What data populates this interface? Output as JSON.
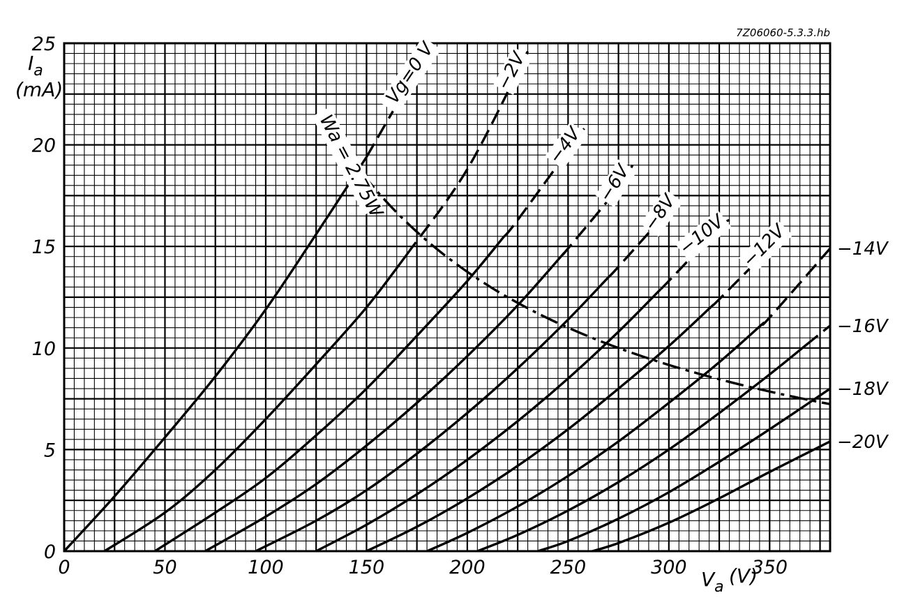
{
  "figure_code": "7Z06060-5.3.3.hb",
  "chart_data": {
    "type": "line",
    "ylabel": "I",
    "ylabel_sub": "a",
    "ylabel_unit": "(mA)",
    "xlabel": "V",
    "xlabel_sub": "a",
    "xlabel_unit": "(V)",
    "xlim": [
      0,
      380
    ],
    "ylim": [
      0,
      25
    ],
    "x_ticks": [
      0,
      50,
      100,
      150,
      200,
      250,
      300,
      350
    ],
    "y_ticks": [
      0,
      5,
      10,
      15,
      20,
      25
    ],
    "x_tick_labels": [
      "0",
      "50",
      "100",
      "150",
      "200",
      "250",
      "300",
      "350"
    ],
    "y_tick_labels": [
      "0",
      "5",
      "10",
      "15",
      "20",
      "25"
    ],
    "grid": true,
    "grid_minor_x": 5,
    "grid_minor_y": 0.5,
    "series": [
      {
        "name": "Vg=0 V",
        "label_side": "curve",
        "points": [
          [
            0,
            0
          ],
          [
            25,
            2.7
          ],
          [
            50,
            5.6
          ],
          [
            75,
            8.6
          ],
          [
            100,
            11.9
          ],
          [
            125,
            15.6
          ],
          [
            150,
            19.4
          ],
          [
            170,
            22.8
          ],
          [
            185,
            25.0
          ]
        ],
        "dashed_from": 150
      },
      {
        "name": "−2V",
        "label_side": "curve",
        "points": [
          [
            20,
            0
          ],
          [
            50,
            1.9
          ],
          [
            75,
            4.0
          ],
          [
            100,
            6.5
          ],
          [
            125,
            9.2
          ],
          [
            150,
            12.0
          ],
          [
            170,
            14.6
          ],
          [
            200,
            18.8
          ],
          [
            230,
            24.6
          ]
        ],
        "dashed_from": 170
      },
      {
        "name": "−4V",
        "label_side": "curve",
        "points": [
          [
            45,
            0
          ],
          [
            75,
            1.9
          ],
          [
            100,
            3.6
          ],
          [
            125,
            5.7
          ],
          [
            150,
            8.0
          ],
          [
            175,
            10.6
          ],
          [
            200,
            13.3
          ],
          [
            225,
            16.3
          ],
          [
            258,
            20.8
          ]
        ],
        "dashed_from": 218
      },
      {
        "name": "−6V",
        "label_side": "curve",
        "points": [
          [
            70,
            0
          ],
          [
            100,
            1.7
          ],
          [
            125,
            3.3
          ],
          [
            150,
            5.2
          ],
          [
            175,
            7.3
          ],
          [
            200,
            9.6
          ],
          [
            225,
            12.1
          ],
          [
            250,
            14.9
          ],
          [
            275,
            17.9
          ],
          [
            282,
            19.0
          ]
        ],
        "dashed_from": 248
      },
      {
        "name": "−8V",
        "label_side": "curve",
        "points": [
          [
            95,
            0
          ],
          [
            125,
            1.5
          ],
          [
            150,
            3.0
          ],
          [
            175,
            4.8
          ],
          [
            200,
            6.8
          ],
          [
            225,
            9.0
          ],
          [
            250,
            11.4
          ],
          [
            275,
            14.0
          ],
          [
            300,
            16.8
          ],
          [
            305,
            17.5
          ]
        ],
        "dashed_from": 270
      },
      {
        "name": "−10V",
        "label_side": "curve",
        "points": [
          [
            125,
            0
          ],
          [
            150,
            1.3
          ],
          [
            175,
            2.8
          ],
          [
            200,
            4.5
          ],
          [
            225,
            6.4
          ],
          [
            250,
            8.5
          ],
          [
            275,
            10.8
          ],
          [
            300,
            13.3
          ],
          [
            325,
            15.9
          ],
          [
            330,
            16.3
          ]
        ],
        "dashed_from": 296
      },
      {
        "name": "−12V",
        "label_side": "curve",
        "points": [
          [
            150,
            0
          ],
          [
            175,
            1.2
          ],
          [
            200,
            2.6
          ],
          [
            225,
            4.2
          ],
          [
            250,
            6.0
          ],
          [
            275,
            8.0
          ],
          [
            300,
            10.1
          ],
          [
            325,
            12.4
          ],
          [
            350,
            14.9
          ],
          [
            360,
            15.9
          ]
        ],
        "dashed_from": 322
      },
      {
        "name": "−14V",
        "label_side": "right",
        "points": [
          [
            180,
            0
          ],
          [
            200,
            0.9
          ],
          [
            225,
            2.2
          ],
          [
            250,
            3.7
          ],
          [
            275,
            5.4
          ],
          [
            300,
            7.3
          ],
          [
            325,
            9.3
          ],
          [
            350,
            11.5
          ],
          [
            380,
            14.9
          ]
        ],
        "dashed_from": 347
      },
      {
        "name": "−16V",
        "label_side": "right",
        "points": [
          [
            205,
            0
          ],
          [
            225,
            0.8
          ],
          [
            250,
            2.0
          ],
          [
            275,
            3.4
          ],
          [
            300,
            5.0
          ],
          [
            325,
            6.8
          ],
          [
            350,
            8.7
          ],
          [
            380,
            11.1
          ]
        ],
        "dashed_from": 368
      },
      {
        "name": "−18V",
        "label_side": "right",
        "points": [
          [
            235,
            0
          ],
          [
            250,
            0.5
          ],
          [
            275,
            1.6
          ],
          [
            300,
            2.9
          ],
          [
            325,
            4.4
          ],
          [
            350,
            6.0
          ],
          [
            380,
            8.0
          ]
        ],
        "dashed_from": 400
      },
      {
        "name": "−20V",
        "label_side": "right",
        "points": [
          [
            262,
            0
          ],
          [
            275,
            0.4
          ],
          [
            300,
            1.4
          ],
          [
            325,
            2.6
          ],
          [
            350,
            3.9
          ],
          [
            380,
            5.4
          ]
        ],
        "dashed_from": 400
      }
    ],
    "power_limit": {
      "name": "Wa = 2.75W",
      "watts": 2.75,
      "solid_range": [
        128,
        148
      ],
      "dashed_range": [
        148,
        380
      ]
    }
  }
}
